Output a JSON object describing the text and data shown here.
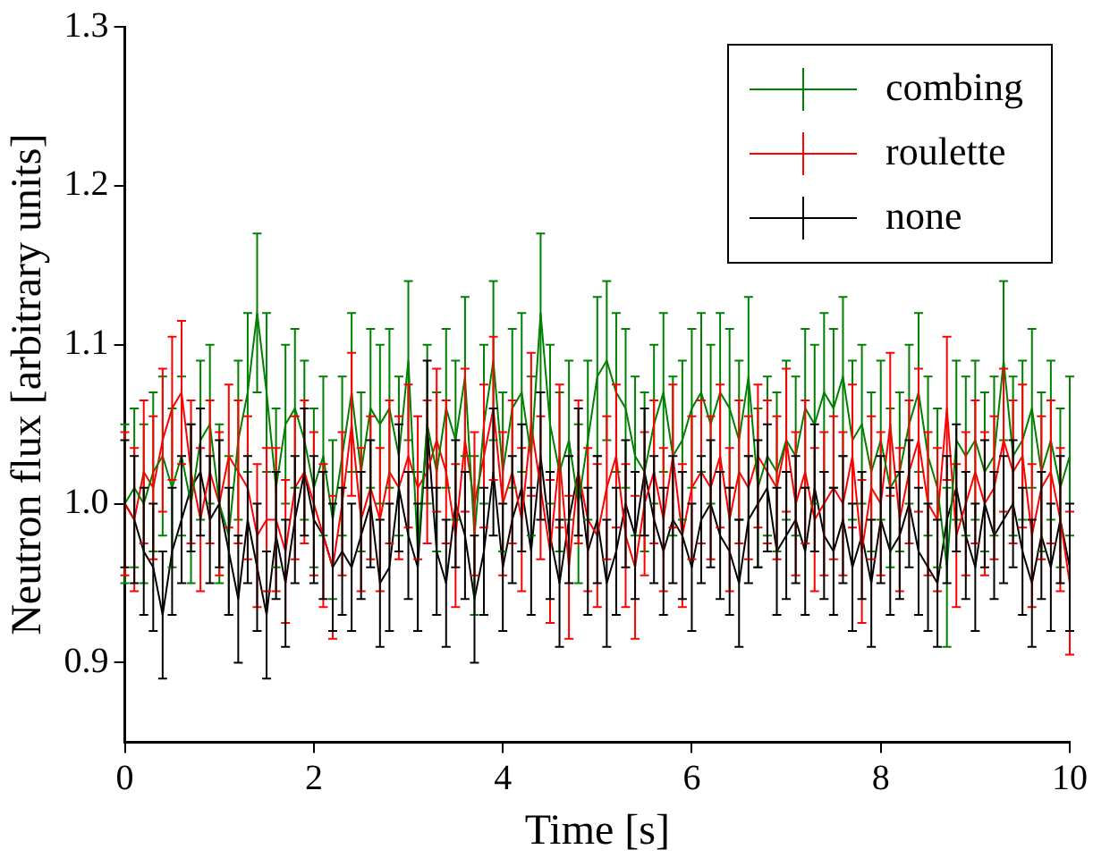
{
  "chart_data": {
    "type": "line",
    "xlabel": "Time [s]",
    "ylabel": "Neutron flux [arbitrary units]",
    "x": [
      0,
      0.1,
      0.2,
      0.3,
      0.4,
      0.5,
      0.6,
      0.7,
      0.8,
      0.9,
      1,
      1.1,
      1.2,
      1.3,
      1.4,
      1.5,
      1.6,
      1.7,
      1.8,
      1.9,
      2,
      2.1,
      2.2,
      2.3,
      2.4,
      2.5,
      2.6,
      2.7,
      2.8,
      2.9,
      3,
      3.1,
      3.2,
      3.3,
      3.4,
      3.5,
      3.6,
      3.7,
      3.8,
      3.9,
      4,
      4.1,
      4.2,
      4.3,
      4.4,
      4.5,
      4.6,
      4.7,
      4.8,
      4.9,
      5,
      5.1,
      5.2,
      5.3,
      5.4,
      5.5,
      5.6,
      5.7,
      5.8,
      5.9,
      6,
      6.1,
      6.2,
      6.3,
      6.4,
      6.5,
      6.6,
      6.7,
      6.8,
      6.9,
      7,
      7.1,
      7.2,
      7.3,
      7.4,
      7.5,
      7.6,
      7.7,
      7.8,
      7.9,
      8,
      8.1,
      8.2,
      8.3,
      8.4,
      8.5,
      8.6,
      8.7,
      8.8,
      8.9,
      9,
      9.1,
      9.2,
      9.3,
      9.4,
      9.5,
      9.6,
      9.7,
      9.8,
      9.9,
      10
    ],
    "series": [
      {
        "name": "combing",
        "color": "#008000",
        "values": [
          1.0,
          1.01,
          1.0,
          1.02,
          1.03,
          1.01,
          1.03,
          1.0,
          1.04,
          1.05,
          1.0,
          0.98,
          1.04,
          1.07,
          1.12,
          1.07,
          1.01,
          1.05,
          1.06,
          1.04,
          1.01,
          1.03,
          0.99,
          1.03,
          1.07,
          1.02,
          1.06,
          1.05,
          1.06,
          1.03,
          1.09,
          0.97,
          1.05,
          1.02,
          1.06,
          1.04,
          1.08,
          0.98,
          1.05,
          1.09,
          1.02,
          1.06,
          1.07,
          1.03,
          1.12,
          1.05,
          1.02,
          1.04,
          1.0,
          1.04,
          1.08,
          1.09,
          1.07,
          1.06,
          1.03,
          1.02,
          1.05,
          1.07,
          1.03,
          1.04,
          1.06,
          1.07,
          1.05,
          1.07,
          1.06,
          1.04,
          1.08,
          1.01,
          1.03,
          1.02,
          1.04,
          1.03,
          1.06,
          1.05,
          1.07,
          1.06,
          1.08,
          1.04,
          1.05,
          1.02,
          1.04,
          1.01,
          1.02,
          1.05,
          1.07,
          1.03,
          1.01,
          0.96,
          1.04,
          1.03,
          1.04,
          1.02,
          1.03,
          1.09,
          1.03,
          1.04,
          1.06,
          1.02,
          1.04,
          1.01,
          1.03
        ],
        "errors": [
          0.05,
          0.05,
          0.05,
          0.05,
          0.05,
          0.05,
          0.05,
          0.05,
          0.05,
          0.05,
          0.05,
          0.05,
          0.05,
          0.05,
          0.05,
          0.05,
          0.05,
          0.05,
          0.05,
          0.05,
          0.05,
          0.05,
          0.05,
          0.05,
          0.05,
          0.05,
          0.05,
          0.05,
          0.05,
          0.05,
          0.05,
          0.05,
          0.05,
          0.05,
          0.05,
          0.05,
          0.05,
          0.05,
          0.05,
          0.05,
          0.05,
          0.05,
          0.05,
          0.05,
          0.05,
          0.05,
          0.05,
          0.05,
          0.05,
          0.05,
          0.05,
          0.05,
          0.05,
          0.05,
          0.05,
          0.05,
          0.05,
          0.05,
          0.05,
          0.05,
          0.05,
          0.05,
          0.05,
          0.05,
          0.05,
          0.05,
          0.05,
          0.05,
          0.05,
          0.05,
          0.05,
          0.05,
          0.05,
          0.05,
          0.05,
          0.05,
          0.05,
          0.05,
          0.05,
          0.05,
          0.05,
          0.05,
          0.05,
          0.05,
          0.05,
          0.05,
          0.05,
          0.05,
          0.05,
          0.05,
          0.05,
          0.05,
          0.05,
          0.05,
          0.05,
          0.05,
          0.05,
          0.05,
          0.05,
          0.05,
          0.05
        ]
      },
      {
        "name": "roulette",
        "color": "#ff0000",
        "values": [
          1.0,
          0.99,
          1.02,
          1.01,
          1.04,
          1.06,
          1.07,
          1.02,
          0.99,
          1.02,
          1.0,
          1.03,
          1.02,
          1.01,
          0.98,
          0.99,
          0.99,
          0.97,
          1.01,
          1.02,
          1.0,
          0.98,
          0.96,
          1.0,
          1.05,
          0.99,
          1.01,
          0.99,
          1.02,
          1.01,
          1.03,
          1.01,
          1.02,
          1.04,
          1.02,
          0.98,
          1.04,
          1.0,
          1.03,
          1.06,
          1.0,
          1.02,
          0.99,
          1.05,
          1.01,
          0.97,
          1.03,
          0.96,
          1.02,
          0.99,
          0.98,
          1.01,
          1.03,
          0.98,
          0.96,
          1.0,
          1.02,
          0.99,
          1.03,
          0.98,
          1.01,
          1.02,
          1.01,
          1.03,
          0.99,
          1.02,
          1.01,
          1.03,
          1.02,
          1.01,
          1.04,
          1.0,
          1.02,
          0.99,
          1.0,
          1.01,
          1.0,
          1.03,
          0.97,
          1.01,
          1.0,
          1.05,
          0.99,
          1.02,
          1.04,
          1.0,
          0.99,
          1.06,
          0.98,
          1.0,
          1.02,
          1.0,
          1.01,
          1.04,
          1.02,
          1.03,
          0.98,
          1.01,
          1.02,
          0.99,
          0.95
        ],
        "errors": [
          0.045,
          0.045,
          0.045,
          0.045,
          0.045,
          0.045,
          0.045,
          0.045,
          0.045,
          0.045,
          0.045,
          0.045,
          0.045,
          0.045,
          0.045,
          0.045,
          0.045,
          0.045,
          0.045,
          0.045,
          0.045,
          0.045,
          0.045,
          0.045,
          0.045,
          0.045,
          0.045,
          0.045,
          0.045,
          0.045,
          0.045,
          0.045,
          0.045,
          0.045,
          0.045,
          0.045,
          0.045,
          0.045,
          0.045,
          0.045,
          0.045,
          0.045,
          0.045,
          0.045,
          0.045,
          0.045,
          0.045,
          0.045,
          0.045,
          0.045,
          0.045,
          0.045,
          0.045,
          0.045,
          0.045,
          0.045,
          0.045,
          0.045,
          0.045,
          0.045,
          0.045,
          0.045,
          0.045,
          0.045,
          0.045,
          0.045,
          0.045,
          0.045,
          0.045,
          0.045,
          0.045,
          0.045,
          0.045,
          0.045,
          0.045,
          0.045,
          0.045,
          0.045,
          0.045,
          0.045,
          0.045,
          0.045,
          0.045,
          0.045,
          0.045,
          0.045,
          0.045,
          0.045,
          0.045,
          0.045,
          0.045,
          0.045,
          0.045,
          0.045,
          0.045,
          0.045,
          0.045,
          0.045,
          0.045,
          0.045,
          0.045
        ]
      },
      {
        "name": "none",
        "color": "#000000",
        "values": [
          1.0,
          0.99,
          0.97,
          0.96,
          0.93,
          0.97,
          0.99,
          1.01,
          1.02,
          0.99,
          1.0,
          0.97,
          0.94,
          0.99,
          0.96,
          0.93,
          0.98,
          0.95,
          0.99,
          1.02,
          0.99,
          0.98,
          0.96,
          0.97,
          0.96,
          0.98,
          1.0,
          0.95,
          0.96,
          1.01,
          0.98,
          0.96,
          1.05,
          0.97,
          0.95,
          1.0,
          0.98,
          0.94,
          0.97,
          1.02,
          0.96,
          0.99,
          1.01,
          0.97,
          1.03,
          0.98,
          0.95,
          0.99,
          1.02,
          0.97,
          0.99,
          0.95,
          0.97,
          1.0,
          0.98,
          1.02,
          0.99,
          0.97,
          0.99,
          0.98,
          0.96,
          0.99,
          1.0,
          0.98,
          0.97,
          0.95,
          0.99,
          1.0,
          1.01,
          0.97,
          0.98,
          0.99,
          0.97,
          1.01,
          0.98,
          0.97,
          0.99,
          0.96,
          0.98,
          0.95,
          0.99,
          0.97,
          0.98,
          1.0,
          0.97,
          0.96,
          0.95,
          0.99,
          1.01,
          0.98,
          0.96,
          1.0,
          0.98,
          0.99,
          1.0,
          0.97,
          0.95,
          0.98,
          0.96,
          0.99,
          0.96
        ],
        "errors": [
          0.04,
          0.04,
          0.04,
          0.04,
          0.04,
          0.04,
          0.04,
          0.04,
          0.04,
          0.04,
          0.04,
          0.04,
          0.04,
          0.04,
          0.04,
          0.04,
          0.04,
          0.04,
          0.04,
          0.04,
          0.04,
          0.04,
          0.04,
          0.04,
          0.04,
          0.04,
          0.04,
          0.04,
          0.04,
          0.04,
          0.04,
          0.04,
          0.04,
          0.04,
          0.04,
          0.04,
          0.04,
          0.04,
          0.04,
          0.04,
          0.04,
          0.04,
          0.04,
          0.04,
          0.04,
          0.04,
          0.04,
          0.04,
          0.04,
          0.04,
          0.04,
          0.04,
          0.04,
          0.04,
          0.04,
          0.04,
          0.04,
          0.04,
          0.04,
          0.04,
          0.04,
          0.04,
          0.04,
          0.04,
          0.04,
          0.04,
          0.04,
          0.04,
          0.04,
          0.04,
          0.04,
          0.04,
          0.04,
          0.04,
          0.04,
          0.04,
          0.04,
          0.04,
          0.04,
          0.04,
          0.04,
          0.04,
          0.04,
          0.04,
          0.04,
          0.04,
          0.04,
          0.04,
          0.04,
          0.04,
          0.04,
          0.04,
          0.04,
          0.04,
          0.04,
          0.04,
          0.04,
          0.04,
          0.04,
          0.04,
          0.04
        ]
      }
    ],
    "xlim": [
      0,
      10
    ],
    "xticks": [
      0,
      2,
      4,
      6,
      8,
      10
    ],
    "ylim": [
      0.85,
      1.3
    ],
    "yticks": [
      0.9,
      {
        "value": 1,
        "label": "1.0"
      },
      1.1,
      1.2,
      1.3
    ],
    "grid": false,
    "legend": "top right",
    "marker": "none",
    "line_style": "solid"
  }
}
